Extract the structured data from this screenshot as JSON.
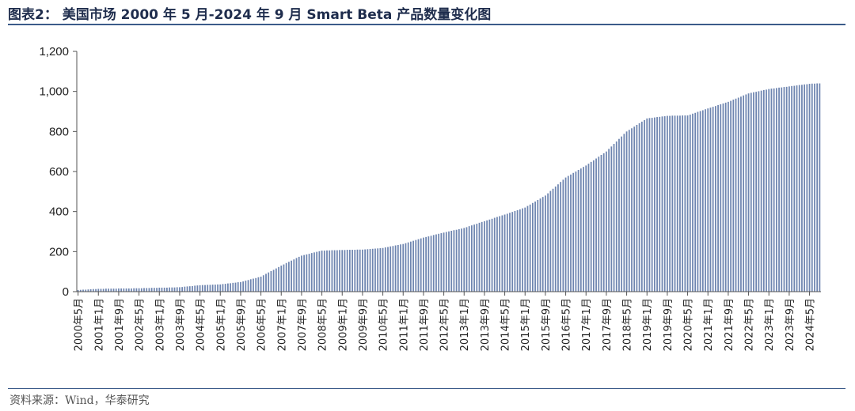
{
  "figure": {
    "title": "图表2： 美国市场 2000 年 5 月-2024 年 9 月 Smart Beta 产品数量变化图",
    "source": "资料来源：Wind，华泰研究"
  },
  "chart_data": {
    "type": "bar",
    "title": "",
    "xlabel": "",
    "ylabel": "",
    "ylim": [
      0,
      1200
    ],
    "y_ticks": [
      "0",
      "200",
      "400",
      "600",
      "800",
      "1,000",
      "1,200"
    ],
    "bar_color": "#6e85b0",
    "grid": false,
    "x_tick_labels": [
      "2000年5月",
      "2001年1月",
      "2001年9月",
      "2002年5月",
      "2003年1月",
      "2003年9月",
      "2004年5月",
      "2005年1月",
      "2005年9月",
      "2006年5月",
      "2007年1月",
      "2007年9月",
      "2008年5月",
      "2009年1月",
      "2009年9月",
      "2010年5月",
      "2011年1月",
      "2011年9月",
      "2012年5月",
      "2013年1月",
      "2013年9月",
      "2014年5月",
      "2015年1月",
      "2015年9月",
      "2016年5月",
      "2017年1月",
      "2017年9月",
      "2018年5月",
      "2019年1月",
      "2019年9月",
      "2020年5月",
      "2021年1月",
      "2021年9月",
      "2022年5月",
      "2023年1月",
      "2023年9月",
      "2024年5月"
    ],
    "start": "2000-05",
    "end": "2024-09",
    "anchors": [
      [
        "2000-05",
        8
      ],
      [
        "2001-01",
        14
      ],
      [
        "2002-05",
        17
      ],
      [
        "2003-09",
        22
      ],
      [
        "2004-05",
        32
      ],
      [
        "2005-01",
        36
      ],
      [
        "2005-09",
        48
      ],
      [
        "2006-05",
        75
      ],
      [
        "2007-01",
        130
      ],
      [
        "2007-09",
        180
      ],
      [
        "2008-05",
        205
      ],
      [
        "2009-01",
        208
      ],
      [
        "2009-09",
        210
      ],
      [
        "2010-05",
        218
      ],
      [
        "2011-01",
        238
      ],
      [
        "2011-09",
        270
      ],
      [
        "2012-05",
        295
      ],
      [
        "2013-01",
        318
      ],
      [
        "2013-09",
        352
      ],
      [
        "2014-05",
        385
      ],
      [
        "2015-01",
        420
      ],
      [
        "2015-09",
        480
      ],
      [
        "2016-05",
        570
      ],
      [
        "2017-01",
        630
      ],
      [
        "2017-09",
        700
      ],
      [
        "2018-05",
        800
      ],
      [
        "2019-01",
        865
      ],
      [
        "2019-09",
        878
      ],
      [
        "2020-05",
        880
      ],
      [
        "2021-01",
        915
      ],
      [
        "2021-09",
        948
      ],
      [
        "2022-05",
        990
      ],
      [
        "2023-01",
        1012
      ],
      [
        "2023-09",
        1025
      ],
      [
        "2024-05",
        1038
      ],
      [
        "2024-09",
        1040
      ]
    ]
  }
}
